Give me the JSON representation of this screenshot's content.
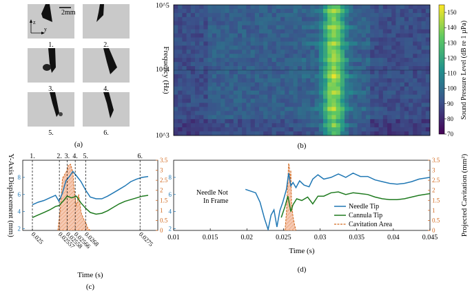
{
  "panel_labels": [
    "(a)",
    "(b)",
    "(c)",
    "(d)"
  ],
  "panel_a": {
    "frames": [
      "1.",
      "2.",
      "3.",
      "4.",
      "5.",
      "6."
    ],
    "scale_bar_label": "2mm",
    "axis_z": "z",
    "axis_y": "y"
  },
  "chart_data": [
    {
      "id": "b",
      "type": "heatmap",
      "title": "",
      "xlabel": "",
      "ylabel": "Frequency (Hz)",
      "yscale": "log",
      "ylim": [
        1000,
        100000
      ],
      "ytick_labels": [
        "10^5",
        "10^4",
        "10^3"
      ],
      "colorbar": {
        "label": "Sound Pressure Level (dB re 1 µPa)",
        "range": [
          70,
          155
        ],
        "tick_values": [
          70,
          80,
          90,
          100,
          110,
          120,
          130,
          140,
          150
        ],
        "tick_labels": [
          "70",
          "80",
          "90",
          "100",
          "110",
          "120",
          "130",
          "140",
          "150"
        ],
        "colormap": [
          "#440154",
          "#3b528b",
          "#21918c",
          "#5ec962",
          "#fde725"
        ]
      },
      "n_time_bins": 60,
      "n_freq_bins": 32,
      "event_time_bin": 37
    },
    {
      "id": "c",
      "type": "line",
      "xlabel": "Time (s)",
      "ylabel": "Y-Axis Displacement (mm)",
      "y2label": "",
      "x_tick_labels": [
        "0.025",
        "0.02557",
        "0.02558",
        "0.02566",
        "0.0268",
        "0.0275"
      ],
      "x_tick_values": [
        0.025,
        0.02557,
        0.02558,
        0.02566,
        0.0268,
        0.0275
      ],
      "y_ticks": [
        2,
        4,
        6,
        8
      ],
      "y2_ticks": [
        0,
        0.5,
        1,
        1.5,
        2,
        2.5,
        3,
        3.5
      ],
      "y2_tick_labels": [
        "0",
        "0.5",
        "1",
        "1.5",
        "2",
        "2.5",
        "3",
        "3.5"
      ],
      "ylim": [
        1.8,
        10
      ],
      "y2lim": [
        0,
        3.5
      ],
      "frame_markers": [
        {
          "label": "1.",
          "x": 0.0
        },
        {
          "label": "2.",
          "x": 0.233
        },
        {
          "label": "3.",
          "x": 0.3
        },
        {
          "label": "4.",
          "x": 0.37
        },
        {
          "label": "5.",
          "x": 0.46
        },
        {
          "label": "6.",
          "x": 0.93
        }
      ],
      "series": [
        {
          "name": "Needle Tip",
          "color": "#1f77b4",
          "x": [
            0,
            0.05,
            0.1,
            0.15,
            0.2,
            0.23,
            0.26,
            0.29,
            0.32,
            0.35,
            0.38,
            0.42,
            0.46,
            0.5,
            0.55,
            0.6,
            0.65,
            0.7,
            0.75,
            0.8,
            0.85,
            0.9,
            0.95,
            1.0
          ],
          "y": [
            4.8,
            5.1,
            5.3,
            5.6,
            5.9,
            5.2,
            6.2,
            7.6,
            8.1,
            8.7,
            8.2,
            7.5,
            6.5,
            5.7,
            5.5,
            5.5,
            5.8,
            6.2,
            6.6,
            7.0,
            7.5,
            7.8,
            8.0,
            8.1
          ]
        },
        {
          "name": "Cannula Tip",
          "color": "#1e7a1e",
          "x": [
            0,
            0.05,
            0.1,
            0.15,
            0.2,
            0.23,
            0.27,
            0.3,
            0.34,
            0.38,
            0.42,
            0.46,
            0.5,
            0.55,
            0.6,
            0.65,
            0.7,
            0.75,
            0.8,
            0.85,
            0.9,
            0.95,
            1.0
          ],
          "y": [
            3.3,
            3.6,
            3.9,
            4.2,
            4.6,
            4.7,
            5.3,
            5.8,
            5.6,
            5.8,
            5.0,
            4.4,
            3.9,
            3.7,
            3.8,
            4.1,
            4.5,
            4.9,
            5.2,
            5.4,
            5.6,
            5.8,
            5.9
          ]
        },
        {
          "name": "Cavitation Area",
          "color": "#d2691e",
          "axis": "right",
          "x": [
            0.22,
            0.24,
            0.26,
            0.28,
            0.3,
            0.31,
            0.33,
            0.35,
            0.36,
            0.38,
            0.4,
            0.42,
            0.44,
            0.46,
            0.48,
            0.5
          ],
          "y": [
            0,
            1.0,
            2.6,
            2.8,
            3.0,
            3.25,
            3.3,
            2.9,
            2.1,
            1.2,
            1.8,
            0.9,
            0.6,
            0.4,
            0.1,
            0
          ]
        }
      ]
    },
    {
      "id": "d",
      "type": "line",
      "xlabel": "Time (s)",
      "ylabel": "",
      "y2label": "Projected Cavitation (mm²)",
      "x_tick_labels": [
        "0.01",
        "0.015",
        "0.02",
        "0.025",
        "0.03",
        "0.035",
        "0.04",
        "0.045"
      ],
      "x_tick_values": [
        0.01,
        0.015,
        0.02,
        0.025,
        0.03,
        0.035,
        0.04,
        0.045
      ],
      "xlim": [
        0.01,
        0.045
      ],
      "y_ticks": [
        2,
        4,
        6,
        8
      ],
      "y2_ticks": [
        0,
        0.5,
        1,
        1.5,
        2,
        2.5,
        3,
        3.5
      ],
      "y2_tick_labels": [
        "0",
        "0.5",
        "1",
        "1.5",
        "2",
        "2.5",
        "3",
        "3.5"
      ],
      "ylim": [
        1.8,
        10
      ],
      "y2lim": [
        0,
        3.5
      ],
      "annotation": [
        "Needle Not",
        "In Frame"
      ],
      "legend": [
        "Needle Tip",
        "Cannula Tip",
        "Cavitation Area"
      ],
      "series": [
        {
          "name": "Needle Tip",
          "color": "#1f77b4",
          "x": [
            0.0198,
            0.0205,
            0.0212,
            0.0218,
            0.0224,
            0.0229,
            0.0233,
            0.0237,
            0.0241,
            0.0245,
            0.0249,
            0.0254,
            0.0257,
            0.026,
            0.0263,
            0.0267,
            0.0272,
            0.0278,
            0.0285,
            0.029,
            0.0297,
            0.0305,
            0.0315,
            0.0325,
            0.0335,
            0.0345,
            0.0355,
            0.0365,
            0.0375,
            0.0385,
            0.0395,
            0.0405,
            0.0415,
            0.0425,
            0.0435,
            0.045
          ],
          "y": [
            6.6,
            6.4,
            6.2,
            5.1,
            3.2,
            1.9,
            3.6,
            4.2,
            2.2,
            4.1,
            5.1,
            6.6,
            8.5,
            7.0,
            7.4,
            6.8,
            7.6,
            7.1,
            6.9,
            7.8,
            8.3,
            7.8,
            8.0,
            8.4,
            8.0,
            8.5,
            8.1,
            8.1,
            7.7,
            7.5,
            7.3,
            7.2,
            7.3,
            7.5,
            7.8,
            8.0
          ]
        },
        {
          "name": "Cannula Tip",
          "color": "#1e7a1e",
          "x": [
            0.0247,
            0.0252,
            0.0256,
            0.026,
            0.0263,
            0.0268,
            0.0275,
            0.0283,
            0.029,
            0.0297,
            0.0305,
            0.0315,
            0.0325,
            0.0335,
            0.0345,
            0.0355,
            0.0365,
            0.0375,
            0.0385,
            0.0395,
            0.0405,
            0.0415,
            0.0425,
            0.0435,
            0.045
          ],
          "y": [
            3.3,
            4.6,
            5.8,
            4.0,
            4.8,
            5.5,
            5.3,
            5.7,
            4.9,
            5.8,
            5.8,
            6.2,
            6.3,
            6.0,
            6.2,
            6.1,
            6.0,
            5.7,
            5.5,
            5.4,
            5.4,
            5.5,
            5.7,
            5.9,
            6.1
          ]
        },
        {
          "name": "Cavitation Area",
          "color": "#d2691e",
          "axis": "right",
          "x": [
            0.0252,
            0.0254,
            0.0256,
            0.0257,
            0.0258,
            0.0259,
            0.026,
            0.0261,
            0.0263,
            0.0265,
            0.0267
          ],
          "y": [
            0,
            0.9,
            2.6,
            3.35,
            3.2,
            2.4,
            3.0,
            1.4,
            0.7,
            0.3,
            0
          ]
        }
      ]
    }
  ]
}
